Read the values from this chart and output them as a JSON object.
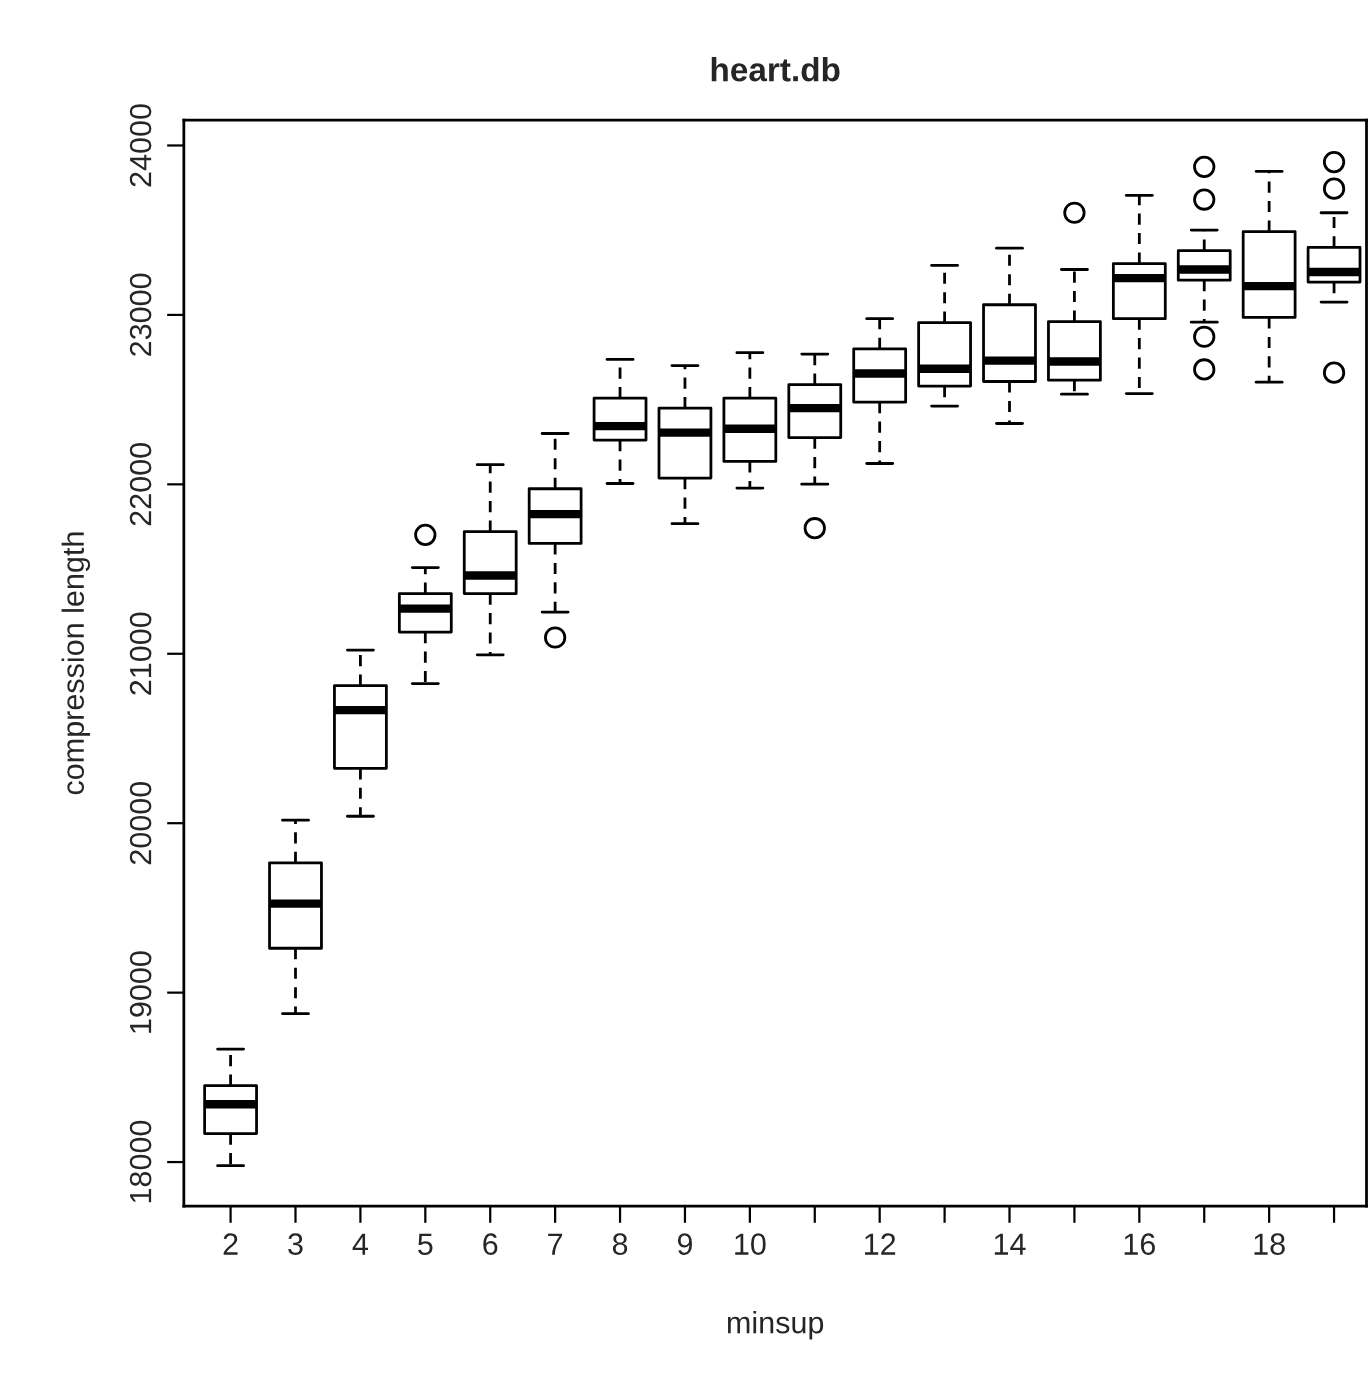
{
  "chart_data": {
    "type": "box",
    "title": "heart.db",
    "xlabel": "minsup",
    "ylabel": "compression length",
    "categories": [
      "2",
      "3",
      "4",
      "5",
      "6",
      "7",
      "8",
      "9",
      "10",
      null,
      "12",
      null,
      "14",
      null,
      "16",
      null,
      "18",
      null
    ],
    "ylim": [
      17740,
      24150
    ],
    "yticks": [
      18000,
      19000,
      20000,
      21000,
      22000,
      23000,
      24000
    ],
    "grid": false,
    "legend": false,
    "boxes": [
      {
        "low": 17979,
        "q1": 18168,
        "median": 18341,
        "q3": 18451,
        "high": 18667
      },
      {
        "low": 18876,
        "q1": 19262,
        "median": 19525,
        "q3": 19766,
        "high": 20018
      },
      {
        "low": 20041,
        "q1": 20324,
        "median": 20667,
        "q3": 20812,
        "high": 21022
      },
      {
        "low": 20824,
        "q1": 21128,
        "median": 21266,
        "q3": 21355,
        "high": 21509,
        "outliers": [
          21702
        ]
      },
      {
        "low": 20994,
        "q1": 21355,
        "median": 21462,
        "q3": 21721,
        "high": 22116
      },
      {
        "low": 21246,
        "q1": 21651,
        "median": 21824,
        "q3": 21974,
        "high": 22300,
        "outliers": [
          21096
        ]
      },
      {
        "low": 22005,
        "q1": 22261,
        "median": 22344,
        "q3": 22509,
        "high": 22737
      },
      {
        "low": 21768,
        "q1": 22037,
        "median": 22305,
        "q3": 22450,
        "high": 22701
      },
      {
        "low": 21978,
        "q1": 22135,
        "median": 22328,
        "q3": 22509,
        "high": 22777
      },
      {
        "low": 22001,
        "q1": 22276,
        "median": 22450,
        "q3": 22588,
        "high": 22769,
        "outliers": [
          21741
        ]
      },
      {
        "low": 22123,
        "q1": 22485,
        "median": 22654,
        "q3": 22800,
        "high": 22978
      },
      {
        "low": 22462,
        "q1": 22580,
        "median": 22682,
        "q3": 22954,
        "high": 23292
      },
      {
        "low": 22359,
        "q1": 22607,
        "median": 22730,
        "q3": 23060,
        "high": 23394
      },
      {
        "low": 22532,
        "q1": 22615,
        "median": 22725,
        "q3": 22961,
        "high": 23268,
        "outliers": [
          23603
        ]
      },
      {
        "low": 22536,
        "q1": 22978,
        "median": 23217,
        "q3": 23303,
        "high": 23705
      },
      {
        "low": 22957,
        "q1": 23205,
        "median": 23268,
        "q3": 23379,
        "high": 23501,
        "outliers": [
          23874,
          23681,
          22871,
          22678
        ]
      },
      {
        "low": 22603,
        "q1": 22985,
        "median": 23170,
        "q3": 23492,
        "high": 23847
      },
      {
        "low": 23076,
        "q1": 23194,
        "median": 23253,
        "q3": 23398,
        "high": 23603,
        "outliers": [
          23902,
          23745,
          22659
        ]
      }
    ]
  }
}
